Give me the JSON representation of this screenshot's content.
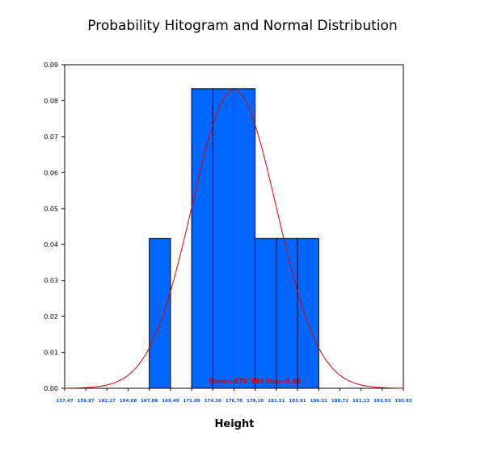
{
  "colors": {
    "bar_fill": "#0066ff",
    "bar_stroke": "#000000",
    "curve": "#e00000",
    "tick_label": "#0a4fd6"
  },
  "chart_data": {
    "type": "bar",
    "title": "Probability Hitogram and Normal Distribution",
    "xlabel": "Height",
    "ylabel": "",
    "xlim": [
      157.47,
      195.93
    ],
    "ylim": [
      0,
      0.09
    ],
    "grid": false,
    "x_ticks": [
      "157.47",
      "159.87",
      "162.27",
      "164.68",
      "167.08",
      "169.49",
      "171.89",
      "174.30",
      "176.70",
      "179.10",
      "181.51",
      "183.91",
      "186.32",
      "188.72",
      "191.13",
      "193.53",
      "195.93"
    ],
    "y_ticks": [
      "0.00",
      "0.01",
      "0.02",
      "0.03",
      "0.04",
      "0.05",
      "0.06",
      "0.07",
      "0.08",
      "0.09"
    ],
    "bins": [
      {
        "start": 167.08,
        "end": 169.49,
        "value": 0.0417
      },
      {
        "start": 171.89,
        "end": 174.3,
        "value": 0.0833
      },
      {
        "start": 174.3,
        "end": 176.7,
        "value": 0.0833
      },
      {
        "start": 176.7,
        "end": 179.1,
        "value": 0.0833
      },
      {
        "start": 179.1,
        "end": 181.51,
        "value": 0.0417
      },
      {
        "start": 181.51,
        "end": 183.91,
        "value": 0.0417
      },
      {
        "start": 183.91,
        "end": 186.32,
        "value": 0.0417
      }
    ],
    "normal_curve": {
      "mean": 176.7,
      "std_dev": 4.81
    },
    "mean_label": "Mean=176.70",
    "std_label": "Std Dev=4.81"
  }
}
